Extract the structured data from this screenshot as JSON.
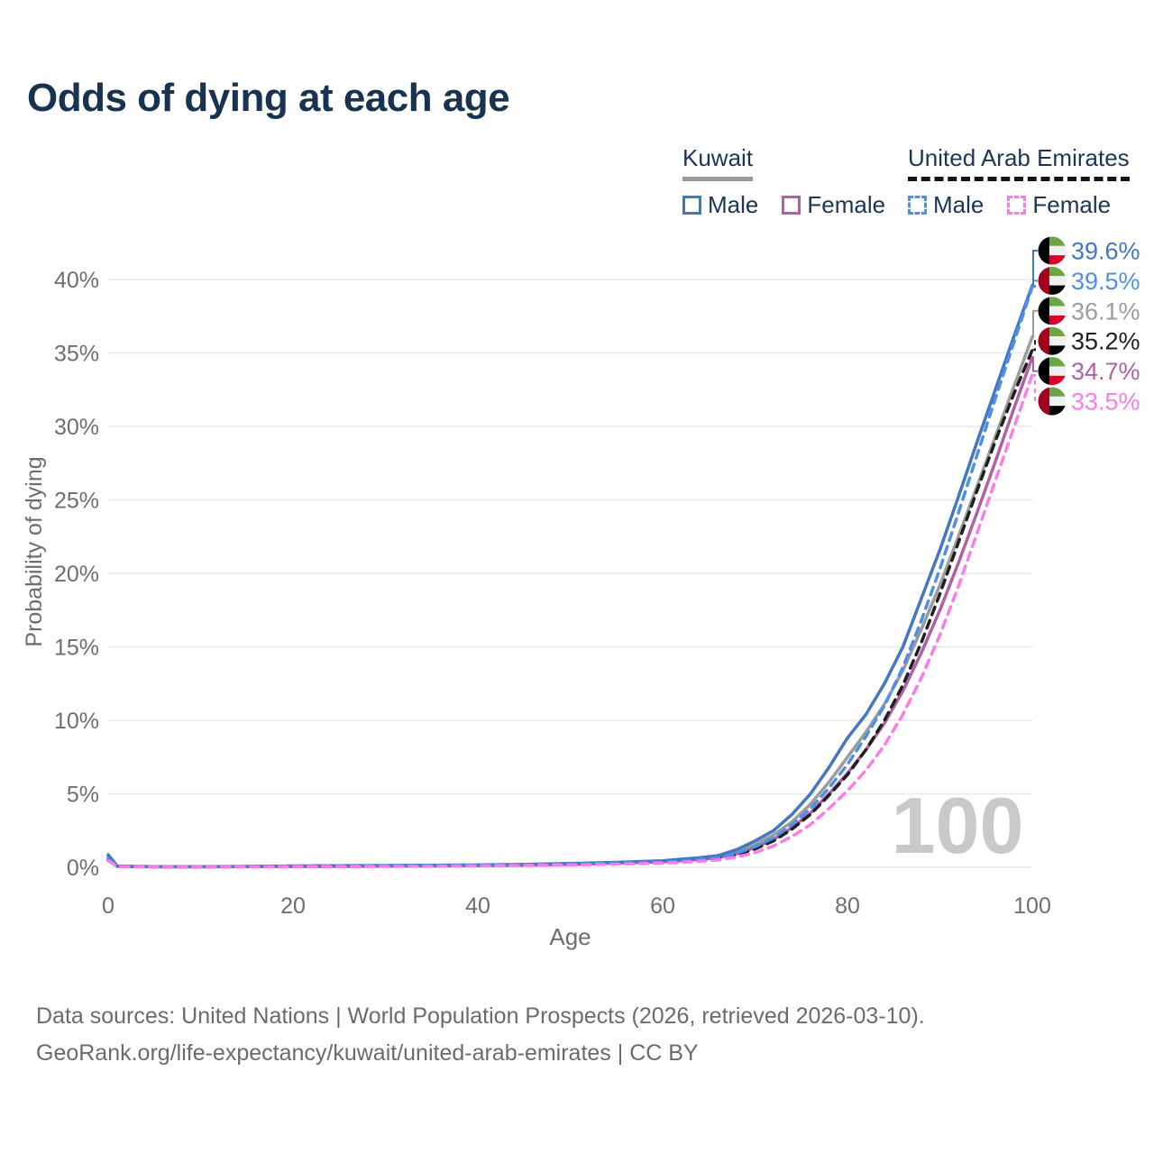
{
  "title": "Odds of dying at each age",
  "legend": {
    "kuwait": {
      "label": "Kuwait",
      "male": "Male",
      "female": "Female"
    },
    "uae": {
      "label": "United Arab Emirates",
      "male": "Male",
      "female": "Female"
    }
  },
  "footer": {
    "line1": "Data sources: United Nations | World Population Prospects (2026, retrieved 2026-03-10).",
    "line2": "GeoRank.org/life-expectancy/kuwait/united-arab-emirates | CC BY"
  },
  "chart_data": {
    "type": "line",
    "title": "Odds of dying at each age",
    "xlabel": "Age",
    "ylabel": "Probability of dying",
    "xlim": [
      0,
      100
    ],
    "ylim": [
      0,
      42
    ],
    "grid": "horizontal",
    "legend_position": "top-right",
    "age_indicator": "100",
    "x_ticks": [
      {
        "v": 0,
        "label": "0"
      },
      {
        "v": 20,
        "label": "20"
      },
      {
        "v": 40,
        "label": "40"
      },
      {
        "v": 60,
        "label": "60"
      },
      {
        "v": 80,
        "label": "80"
      },
      {
        "v": 100,
        "label": "100"
      }
    ],
    "y_ticks": [
      {
        "v": 0,
        "label": "0%"
      },
      {
        "v": 5,
        "label": "5%"
      },
      {
        "v": 10,
        "label": "10%"
      },
      {
        "v": 15,
        "label": "15%"
      },
      {
        "v": 20,
        "label": "20%"
      },
      {
        "v": 25,
        "label": "25%"
      },
      {
        "v": 30,
        "label": "30%"
      },
      {
        "v": 35,
        "label": "35%"
      },
      {
        "v": 40,
        "label": "40%"
      }
    ],
    "ages": [
      0,
      1,
      5,
      10,
      15,
      20,
      25,
      30,
      35,
      40,
      45,
      50,
      55,
      60,
      62,
      64,
      66,
      68,
      70,
      72,
      74,
      76,
      78,
      80,
      82,
      84,
      86,
      88,
      90,
      92,
      94,
      96,
      98,
      100
    ],
    "z_order": [
      "kw_both",
      "kw_female",
      "kw_male",
      "uae_both",
      "uae_male",
      "uae_female"
    ],
    "series": [
      {
        "id": "kw_male",
        "name": "Kuwait Male",
        "country": "Kuwait",
        "sex": "Male",
        "color": "#4377c4",
        "dashed": false,
        "flag": "kuwait",
        "end_label": "39.6%",
        "end_value": 39.6,
        "values": [
          0.85,
          0.08,
          0.04,
          0.04,
          0.06,
          0.09,
          0.11,
          0.12,
          0.14,
          0.16,
          0.2,
          0.26,
          0.34,
          0.45,
          0.55,
          0.65,
          0.8,
          1.2,
          1.8,
          2.5,
          3.6,
          5.0,
          6.8,
          8.8,
          10.4,
          12.5,
          15.0,
          18.3,
          21.6,
          25.2,
          28.9,
          32.5,
          36.1,
          39.6
        ]
      },
      {
        "id": "uae_male",
        "name": "United Arab Emirates Male",
        "country": "United Arab Emirates",
        "sex": "Male",
        "color": "#4e90e8",
        "dashed": true,
        "flag": "uae",
        "end_label": "39.5%",
        "end_value": 39.5,
        "values": [
          0.6,
          0.06,
          0.03,
          0.03,
          0.05,
          0.08,
          0.1,
          0.11,
          0.12,
          0.14,
          0.17,
          0.22,
          0.28,
          0.35,
          0.43,
          0.52,
          0.65,
          0.95,
          1.4,
          2.0,
          2.9,
          4.0,
          5.4,
          7.0,
          8.9,
          11.0,
          13.6,
          16.8,
          20.3,
          24.1,
          28.0,
          31.9,
          35.7,
          39.5
        ]
      },
      {
        "id": "kw_both",
        "name": "Kuwait Both sexes",
        "country": "Kuwait",
        "sex": "Both",
        "color": "#9c9c9c",
        "dashed": false,
        "flag": "kuwait",
        "end_label": "36.1%",
        "end_value": 36.1,
        "values": [
          0.75,
          0.07,
          0.04,
          0.04,
          0.05,
          0.07,
          0.09,
          0.1,
          0.12,
          0.14,
          0.18,
          0.23,
          0.31,
          0.4,
          0.5,
          0.6,
          0.73,
          1.05,
          1.55,
          2.2,
          3.1,
          4.3,
          5.8,
          7.5,
          9.2,
          11.1,
          13.4,
          16.2,
          19.2,
          22.5,
          25.9,
          29.3,
          32.7,
          36.1
        ]
      },
      {
        "id": "uae_both",
        "name": "United Arab Emirates Both sexes",
        "country": "United Arab Emirates",
        "sex": "Both",
        "color": "#1f1f1f",
        "dashed": true,
        "flag": "uae",
        "end_label": "35.2%",
        "end_value": 35.2,
        "values": [
          0.5,
          0.06,
          0.03,
          0.03,
          0.04,
          0.06,
          0.08,
          0.09,
          0.1,
          0.12,
          0.15,
          0.2,
          0.26,
          0.33,
          0.4,
          0.48,
          0.6,
          0.85,
          1.25,
          1.8,
          2.6,
          3.6,
          4.9,
          6.3,
          8.0,
          10.0,
          12.4,
          15.3,
          18.6,
          22.1,
          25.6,
          29.0,
          32.2,
          35.2
        ]
      },
      {
        "id": "kw_female",
        "name": "Kuwait Female",
        "country": "Kuwait",
        "sex": "Female",
        "color": "#b060a8",
        "dashed": false,
        "flag": "kuwait",
        "end_label": "34.7%",
        "end_value": 34.7,
        "values": [
          0.65,
          0.06,
          0.03,
          0.03,
          0.04,
          0.05,
          0.06,
          0.08,
          0.09,
          0.11,
          0.14,
          0.19,
          0.28,
          0.37,
          0.45,
          0.54,
          0.66,
          0.92,
          1.35,
          1.9,
          2.7,
          3.7,
          5.0,
          6.4,
          8.0,
          9.8,
          12.0,
          14.6,
          17.5,
          20.7,
          24.1,
          27.6,
          31.2,
          34.7
        ]
      },
      {
        "id": "uae_female",
        "name": "United Arab Emirates Female",
        "country": "United Arab Emirates",
        "sex": "Female",
        "color": "#fb7be7",
        "dashed": true,
        "flag": "uae",
        "end_label": "33.5%",
        "end_value": 33.5,
        "values": [
          0.45,
          0.05,
          0.03,
          0.03,
          0.03,
          0.04,
          0.05,
          0.06,
          0.08,
          0.1,
          0.12,
          0.16,
          0.21,
          0.28,
          0.34,
          0.41,
          0.5,
          0.7,
          1.0,
          1.45,
          2.1,
          2.9,
          4.0,
          5.2,
          6.6,
          8.3,
          10.4,
          12.9,
          15.8,
          19.1,
          22.7,
          26.3,
          29.9,
          33.5
        ]
      }
    ],
    "colors": {
      "grid": "#e8e8e8",
      "axis_text": "#6e6e6e",
      "watermark": "#c9c9c9",
      "flag_green": "#6da544",
      "flag_red": "#d80027",
      "flag_dark_red": "#a2001d",
      "flag_white": "#f0f0f0",
      "flag_black": "#000000"
    }
  }
}
